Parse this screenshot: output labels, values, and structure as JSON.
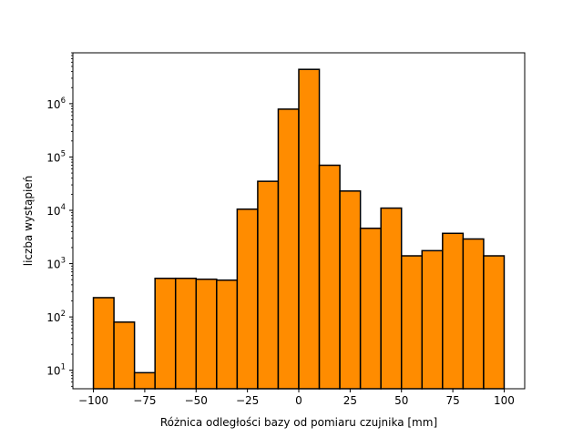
{
  "chart_data": {
    "type": "bar",
    "subtype": "histogram",
    "title": "",
    "xlabel": "Różnica odległości bazy od pomiaru czujnika [mm]",
    "ylabel": "liczba wystąpień",
    "bin_edges": [
      -100,
      -90,
      -80,
      -70,
      -60,
      -50,
      -40,
      -30,
      -20,
      -10,
      0,
      10,
      20,
      30,
      40,
      50,
      60,
      70,
      80,
      90,
      100
    ],
    "values": [
      230,
      80,
      9,
      530,
      530,
      510,
      490,
      10500,
      35000,
      790000,
      4400000,
      70000,
      23000,
      4600,
      11000,
      1400,
      1750,
      3700,
      2900,
      1400
    ],
    "xlim": [
      -110,
      110
    ],
    "ylim": [
      4.5,
      9000000
    ],
    "yscale": "log",
    "x_ticks": [
      -100,
      -75,
      -50,
      -25,
      0,
      25,
      50,
      75,
      100
    ],
    "x_tick_labels": [
      "−100",
      "−75",
      "−50",
      "−25",
      "0",
      "25",
      "50",
      "75",
      "100"
    ],
    "y_ticks": [
      {
        "base": "10",
        "exp": "1",
        "value": 10
      },
      {
        "base": "10",
        "exp": "2",
        "value": 100
      },
      {
        "base": "10",
        "exp": "3",
        "value": 1000
      },
      {
        "base": "10",
        "exp": "4",
        "value": 10000
      },
      {
        "base": "10",
        "exp": "5",
        "value": 100000
      },
      {
        "base": "10",
        "exp": "6",
        "value": 1000000
      }
    ],
    "grid": false,
    "legend": "none",
    "bar_color": "#ff8c00",
    "edge_color": "#000000"
  }
}
